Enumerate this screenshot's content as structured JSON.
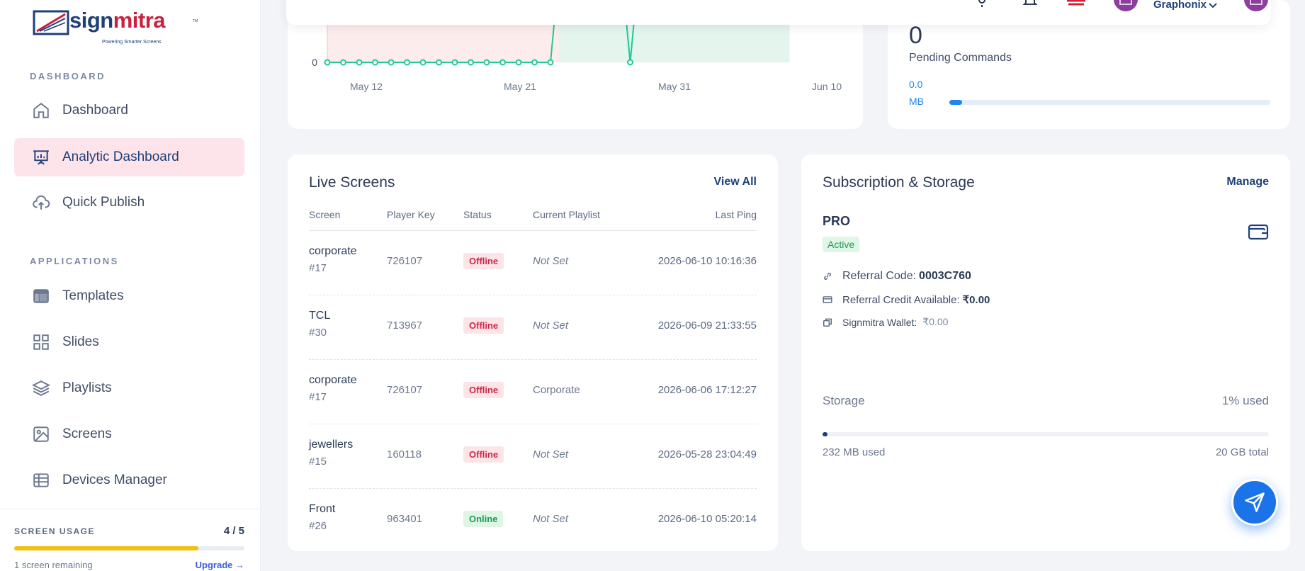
{
  "brand": {
    "name_part1": "sign",
    "name_part2": "mitra",
    "tagline": "Powering Smarter Screens",
    "tm": "TM"
  },
  "sidebar": {
    "sections": [
      {
        "label": "DASHBOARD"
      },
      {
        "label": "APPLICATIONS"
      }
    ],
    "items": [
      {
        "label": "Dashboard",
        "icon": "home-icon",
        "active": false
      },
      {
        "label": "Analytic Dashboard",
        "icon": "presentation-chart-icon",
        "active": true
      },
      {
        "label": "Quick Publish",
        "icon": "cloud-upload-icon",
        "active": false
      },
      {
        "label": "Templates",
        "icon": "layout-icon",
        "active": false
      },
      {
        "label": "Slides",
        "icon": "grid-icon",
        "active": false
      },
      {
        "label": "Playlists",
        "icon": "layers-icon",
        "active": false
      },
      {
        "label": "Screens",
        "icon": "image-icon",
        "active": false
      },
      {
        "label": "Devices Manager",
        "icon": "table-icon",
        "active": false
      }
    ],
    "usage": {
      "label": "SCREEN USAGE",
      "count": "4 / 5",
      "fraction": 0.8,
      "remaining": "1 screen remaining",
      "upgrade": "Upgrade →"
    }
  },
  "topbar": {
    "user_name": "Graphonix"
  },
  "chart_data": {
    "type": "area",
    "x_ticks": [
      "May 12",
      "May 21",
      "May 31",
      "Jun 10"
    ],
    "y_ticks": [
      "0"
    ],
    "series": [
      {
        "values": [
          0,
          0,
          0,
          0,
          0,
          0,
          0,
          0,
          0,
          0,
          0,
          0,
          0,
          0,
          0,
          1,
          1,
          1,
          1,
          0,
          1,
          1,
          1,
          1,
          1,
          1,
          1,
          1,
          1,
          1
        ]
      }
    ]
  },
  "commands": {
    "pending_count": "0",
    "pending_label": "Pending Commands",
    "mb_value": "0.0",
    "mb_unit": "MB",
    "mb_fraction": 0.04
  },
  "live_screens": {
    "title": "Live Screens",
    "view_all": "View All",
    "columns": [
      "Screen",
      "Player Key",
      "Status",
      "Current Playlist",
      "Last Ping"
    ],
    "rows": [
      {
        "name": "corporate",
        "id": "#17",
        "key": "726107",
        "status": "Offline",
        "playlist": "Not Set",
        "ping": "2026-06-10 10:16:36"
      },
      {
        "name": "TCL",
        "id": "#30",
        "key": "713967",
        "status": "Offline",
        "playlist": "Not Set",
        "ping": "2026-06-09 21:33:55"
      },
      {
        "name": "corporate",
        "id": "#17",
        "key": "726107",
        "status": "Offline",
        "playlist": "Corporate",
        "ping": "2026-06-06 17:12:27"
      },
      {
        "name": "jewellers",
        "id": "#15",
        "key": "160118",
        "status": "Offline",
        "playlist": "Not Set",
        "ping": "2026-05-28 23:04:49"
      },
      {
        "name": "Front",
        "id": "#26",
        "key": "963401",
        "status": "Online",
        "playlist": "Not Set",
        "ping": "2026-06-10 05:20:14"
      }
    ]
  },
  "subscription": {
    "title": "Subscription & Storage",
    "manage": "Manage",
    "plan": "PRO",
    "status": "Active",
    "referral_code_label": "Referral Code:",
    "referral_code": "0003C760",
    "referral_credit_label": "Referral Credit Available:",
    "referral_credit": "₹0.00",
    "wallet_label": "Signmitra Wallet:",
    "wallet_value": "₹0.00",
    "storage_label": "Storage",
    "storage_used_pct": "1% used",
    "storage_fraction": 0.01,
    "storage_used": "232 MB used",
    "storage_total": "20 GB total"
  }
}
